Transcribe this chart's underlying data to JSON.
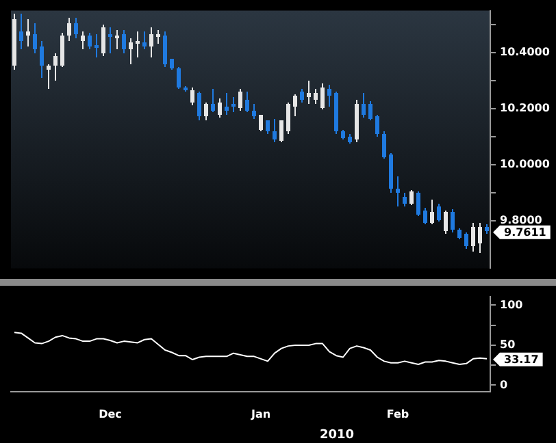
{
  "chart_data": [
    {
      "type": "candlestick",
      "tick_labels": "y",
      "categories": [
        null,
        null,
        null,
        null,
        null,
        null,
        null,
        null,
        null,
        null,
        null,
        null,
        null,
        null,
        null,
        null,
        null,
        null,
        null,
        null,
        null,
        null,
        null,
        null,
        null,
        null,
        null,
        null,
        null,
        null,
        null,
        null,
        null,
        null,
        null,
        null,
        null,
        null,
        null,
        null,
        null,
        null,
        null,
        null,
        null,
        null,
        null,
        null,
        null,
        null,
        null,
        null,
        null,
        null,
        null,
        null,
        null,
        null,
        null,
        null,
        null,
        null,
        null,
        null,
        null,
        null,
        null,
        null,
        null,
        null
      ],
      "ohlc": [
        [
          10.353,
          10.54,
          10.34,
          10.52
        ],
        [
          10.474,
          10.54,
          10.414,
          10.444
        ],
        [
          10.459,
          10.52,
          10.421,
          10.474
        ],
        [
          10.467,
          10.505,
          10.398,
          10.414
        ],
        [
          10.421,
          10.444,
          10.308,
          10.353
        ],
        [
          10.338,
          10.36,
          10.27,
          10.353
        ],
        [
          10.353,
          10.398,
          10.3,
          10.39
        ],
        [
          10.353,
          10.47,
          10.35,
          10.459
        ],
        [
          10.459,
          10.523,
          10.444,
          10.505
        ],
        [
          10.505,
          10.527,
          10.45,
          10.467
        ],
        [
          10.44,
          10.474,
          10.414,
          10.46
        ],
        [
          10.459,
          10.47,
          10.41,
          10.421
        ],
        [
          10.429,
          10.467,
          10.383,
          10.421
        ],
        [
          10.398,
          10.5,
          10.39,
          10.49
        ],
        [
          10.467,
          10.49,
          10.398,
          10.459
        ],
        [
          10.455,
          10.482,
          10.414,
          10.462
        ],
        [
          10.467,
          10.482,
          10.398,
          10.414
        ],
        [
          10.414,
          10.452,
          10.36,
          10.436
        ],
        [
          10.436,
          10.474,
          10.383,
          10.444
        ],
        [
          10.436,
          10.474,
          10.41,
          10.421
        ],
        [
          10.421,
          10.49,
          10.383,
          10.467
        ],
        [
          10.46,
          10.482,
          10.43,
          10.465
        ],
        [
          10.459,
          10.474,
          10.35,
          10.36
        ],
        [
          10.376,
          10.38,
          10.34,
          10.345
        ],
        [
          10.345,
          10.35,
          10.27,
          10.275
        ],
        [
          10.275,
          10.28,
          10.26,
          10.268
        ],
        [
          10.224,
          10.275,
          10.21,
          10.268
        ],
        [
          10.254,
          10.26,
          10.16,
          10.171
        ],
        [
          10.171,
          10.22,
          10.156,
          10.216
        ],
        [
          10.216,
          10.27,
          10.186,
          10.194
        ],
        [
          10.179,
          10.235,
          10.17,
          10.224
        ],
        [
          10.209,
          10.254,
          10.179,
          10.194
        ],
        [
          10.216,
          10.239,
          10.186,
          10.209
        ],
        [
          10.201,
          10.27,
          10.194,
          10.262
        ],
        [
          10.232,
          10.262,
          10.19,
          10.194
        ],
        [
          10.194,
          10.216,
          10.163,
          10.171
        ],
        [
          10.126,
          10.179,
          10.12,
          10.179
        ],
        [
          10.156,
          10.16,
          10.11,
          10.118
        ],
        [
          10.118,
          10.163,
          10.08,
          10.088
        ],
        [
          10.085,
          10.16,
          10.08,
          10.156
        ],
        [
          10.118,
          10.22,
          10.11,
          10.216
        ],
        [
          10.209,
          10.25,
          10.171,
          10.247
        ],
        [
          10.262,
          10.27,
          10.22,
          10.232
        ],
        [
          10.239,
          10.3,
          10.216,
          10.254
        ],
        [
          10.232,
          10.27,
          10.216,
          10.254
        ],
        [
          10.201,
          10.29,
          10.195,
          10.276
        ],
        [
          10.27,
          10.285,
          10.209,
          10.247
        ],
        [
          10.254,
          10.26,
          10.11,
          10.118
        ],
        [
          10.118,
          10.125,
          10.09,
          10.096
        ],
        [
          10.1,
          10.11,
          10.073,
          10.081
        ],
        [
          10.088,
          10.23,
          10.08,
          10.217
        ],
        [
          10.217,
          10.255,
          10.17,
          10.179
        ],
        [
          10.217,
          10.225,
          10.16,
          10.164
        ],
        [
          10.171,
          10.18,
          10.1,
          10.111
        ],
        [
          10.111,
          10.12,
          10.02,
          10.028
        ],
        [
          10.035,
          10.04,
          9.9,
          9.914
        ],
        [
          9.914,
          9.959,
          9.853,
          9.899
        ],
        [
          9.884,
          9.9,
          9.85,
          9.861
        ],
        [
          9.861,
          9.91,
          9.855,
          9.902
        ],
        [
          9.899,
          9.905,
          9.815,
          9.823
        ],
        [
          9.838,
          9.845,
          9.785,
          9.793
        ],
        [
          9.793,
          9.876,
          9.785,
          9.831
        ],
        [
          9.853,
          9.86,
          9.795,
          9.8
        ],
        [
          9.762,
          9.835,
          9.755,
          9.831
        ],
        [
          9.831,
          9.84,
          9.76,
          9.77
        ],
        [
          9.77,
          9.775,
          9.735,
          9.74
        ],
        [
          9.755,
          9.76,
          9.7,
          9.71
        ],
        [
          9.71,
          9.79,
          9.69,
          9.778
        ],
        [
          9.717,
          9.79,
          9.687,
          9.778
        ],
        [
          9.778,
          9.785,
          9.755,
          9.7611
        ]
      ],
      "colors": [
        "#e6e6e6",
        "#1f7ae0",
        "#e6e6e6",
        "#1f7ae0",
        "#1f7ae0",
        "#e6e6e6",
        "#e6e6e6",
        "#e6e6e6",
        "#e6e6e6",
        "#1f7ae0",
        "#e6e6e6",
        "#1f7ae0",
        "#1f7ae0",
        "#e6e6e6",
        "#1f7ae0",
        "#e6e6e6",
        "#1f7ae0",
        "#e6e6e6",
        "#e6e6e6",
        "#1f7ae0",
        "#e6e6e6",
        "#e6e6e6",
        "#1f7ae0",
        "#1f7ae0",
        "#1f7ae0",
        "#1f7ae0",
        "#e6e6e6",
        "#1f7ae0",
        "#e6e6e6",
        "#1f7ae0",
        "#e6e6e6",
        "#1f7ae0",
        "#1f7ae0",
        "#e6e6e6",
        "#1f7ae0",
        "#1f7ae0",
        "#e6e6e6",
        "#1f7ae0",
        "#1f7ae0",
        "#e6e6e6",
        "#e6e6e6",
        "#e6e6e6",
        "#1f7ae0",
        "#e6e6e6",
        "#e6e6e6",
        "#e6e6e6",
        "#1f7ae0",
        "#1f7ae0",
        "#1f7ae0",
        "#1f7ae0",
        "#e6e6e6",
        "#1f7ae0",
        "#1f7ae0",
        "#1f7ae0",
        "#1f7ae0",
        "#1f7ae0",
        "#1f7ae0",
        "#1f7ae0",
        "#e6e6e6",
        "#1f7ae0",
        "#1f7ae0",
        "#e6e6e6",
        "#1f7ae0",
        "#e6e6e6",
        "#1f7ae0",
        "#1f7ae0",
        "#1f7ae0",
        "#e6e6e6",
        "#e6e6e6",
        "#1f7ae0"
      ],
      "ylim": [
        9.63,
        10.55
      ],
      "yticks": [
        {
          "value": 9.8,
          "label": "9.8000"
        },
        {
          "value": 9.9,
          "label": null
        },
        {
          "value": 10.0,
          "label": "10.0000"
        },
        {
          "value": 10.1,
          "label": null
        },
        {
          "value": 10.2,
          "label": "10.2000"
        },
        {
          "value": 10.3,
          "label": null
        },
        {
          "value": 10.4,
          "label": "10.4000"
        },
        {
          "value": 10.5,
          "label": null
        }
      ],
      "annotations": [
        "9.7611"
      ]
    },
    {
      "type": "line",
      "color": "#ffffff",
      "categories": [
        null,
        null,
        null,
        null,
        null,
        null,
        null,
        null,
        null,
        null,
        null,
        null,
        null,
        null,
        "Dec",
        null,
        null,
        null,
        null,
        null,
        null,
        null,
        null,
        null,
        null,
        null,
        null,
        null,
        null,
        null,
        null,
        null,
        null,
        null,
        null,
        null,
        "Jan",
        null,
        null,
        null,
        null,
        null,
        null,
        null,
        null,
        null,
        null,
        null,
        null,
        null,
        null,
        null,
        null,
        null,
        null,
        null,
        "Feb",
        null,
        null,
        null,
        null,
        null,
        null,
        null,
        null,
        null,
        null,
        null,
        null,
        null
      ],
      "values": [
        66,
        65,
        59,
        53,
        52,
        55,
        60,
        62,
        59,
        58,
        55,
        55,
        58,
        58,
        56,
        53,
        55,
        54,
        53,
        57,
        58,
        51,
        44,
        41,
        37,
        37,
        32,
        35,
        36,
        36,
        36,
        36,
        40,
        38,
        36,
        36,
        33,
        30,
        40,
        46,
        49,
        50,
        50,
        50,
        52,
        52,
        42,
        37,
        35,
        46,
        49,
        47,
        44,
        35,
        30,
        28,
        28,
        30,
        28,
        26,
        29,
        29,
        31,
        30,
        28,
        26,
        27,
        33,
        34,
        33.17
      ],
      "ylim": [
        -8,
        111
      ],
      "yticks": [
        0,
        {
          "value": 25,
          "label": null
        },
        50,
        {
          "value": 75,
          "label": null
        },
        100
      ],
      "annotations": [
        "33.17",
        "2010"
      ]
    }
  ]
}
